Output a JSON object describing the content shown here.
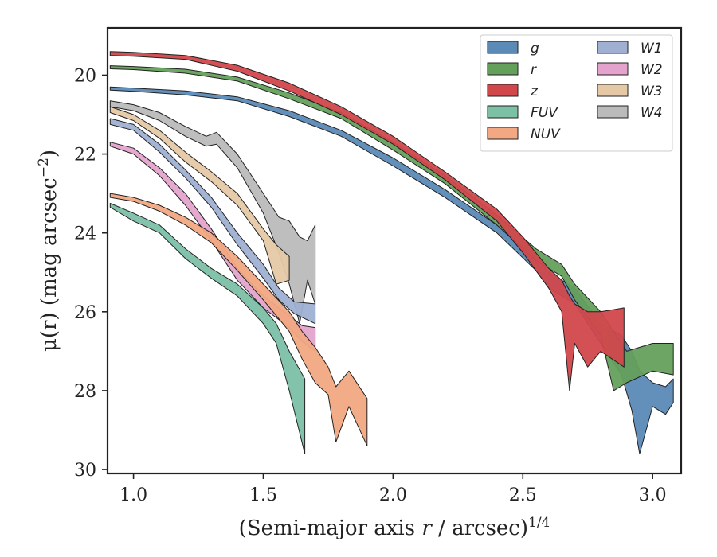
{
  "chart_data": {
    "type": "area",
    "xlabel_prefix": "(Semi-major axis ",
    "xlabel_var": "r",
    "xlabel_suffix": " / arcsec)",
    "xlabel_sup": "1/4",
    "ylabel_prefix": "μ(r) (mag arcsec",
    "ylabel_sup": "−2",
    "ylabel_suffix": ")",
    "xlim": [
      0.9,
      3.11
    ],
    "ylim": [
      30.1,
      18.8
    ],
    "y_inverted": true,
    "xticks": [
      1.0,
      1.5,
      2.0,
      2.5,
      3.0
    ],
    "xtick_labels": [
      "1.0",
      "1.5",
      "2.0",
      "2.5",
      "3.0"
    ],
    "yticks": [
      20,
      22,
      24,
      26,
      28,
      30
    ],
    "ytick_labels": [
      "20",
      "22",
      "24",
      "26",
      "28",
      "30"
    ],
    "grid": false,
    "legend_position": "top-right",
    "legend_columns": 2,
    "series": [
      {
        "name": "W4",
        "color": "#bbbbbb",
        "band": [
          [
            0.91,
            20.65,
            20.8
          ],
          [
            1.0,
            20.75,
            20.9
          ],
          [
            1.1,
            20.95,
            21.15
          ],
          [
            1.2,
            21.3,
            21.55
          ],
          [
            1.28,
            21.55,
            21.8
          ],
          [
            1.32,
            21.45,
            21.75
          ],
          [
            1.4,
            22.0,
            22.35
          ],
          [
            1.5,
            23.0,
            23.5
          ],
          [
            1.56,
            23.6,
            24.5
          ],
          [
            1.6,
            23.7,
            25.3
          ],
          [
            1.64,
            24.1,
            26.3
          ],
          [
            1.67,
            24.2,
            25.2
          ],
          [
            1.7,
            23.8,
            25.8
          ]
        ]
      },
      {
        "name": "W3",
        "color": "#e5c9a6",
        "band": [
          [
            0.91,
            20.8,
            20.95
          ],
          [
            1.0,
            21.0,
            21.15
          ],
          [
            1.1,
            21.4,
            21.6
          ],
          [
            1.2,
            21.95,
            22.2
          ],
          [
            1.3,
            22.45,
            22.7
          ],
          [
            1.4,
            23.0,
            23.3
          ],
          [
            1.5,
            23.9,
            24.2
          ],
          [
            1.55,
            24.3,
            25.3
          ],
          [
            1.6,
            24.6,
            25.2
          ]
        ]
      },
      {
        "name": "W1",
        "color": "#9fb0d2",
        "band": [
          [
            0.91,
            21.1,
            21.25
          ],
          [
            1.0,
            21.25,
            21.4
          ],
          [
            1.1,
            21.75,
            21.95
          ],
          [
            1.2,
            22.4,
            22.6
          ],
          [
            1.3,
            23.1,
            23.35
          ],
          [
            1.4,
            24.0,
            24.3
          ],
          [
            1.5,
            24.8,
            25.15
          ],
          [
            1.56,
            25.4,
            25.7
          ],
          [
            1.62,
            25.75,
            26.05
          ],
          [
            1.7,
            25.8,
            26.3
          ]
        ]
      },
      {
        "name": "W2",
        "color": "#e4a3cc",
        "band": [
          [
            0.91,
            21.7,
            21.8
          ],
          [
            1.0,
            21.85,
            22.0
          ],
          [
            1.1,
            22.35,
            22.55
          ],
          [
            1.2,
            23.0,
            23.3
          ],
          [
            1.3,
            23.9,
            24.2
          ],
          [
            1.4,
            24.9,
            25.2
          ],
          [
            1.5,
            25.6,
            25.9
          ],
          [
            1.6,
            26.1,
            26.4
          ],
          [
            1.65,
            26.35,
            26.75
          ],
          [
            1.7,
            26.4,
            27.0
          ]
        ]
      },
      {
        "name": "NUV",
        "color": "#f2a882",
        "band": [
          [
            0.91,
            23.0,
            23.1
          ],
          [
            1.0,
            23.1,
            23.2
          ],
          [
            1.1,
            23.3,
            23.45
          ],
          [
            1.2,
            23.6,
            23.8
          ],
          [
            1.3,
            24.0,
            24.25
          ],
          [
            1.4,
            24.6,
            24.95
          ],
          [
            1.5,
            25.3,
            25.7
          ],
          [
            1.6,
            26.0,
            26.5
          ],
          [
            1.65,
            26.5,
            27.2
          ],
          [
            1.7,
            26.9,
            27.8
          ],
          [
            1.75,
            27.4,
            28.1
          ],
          [
            1.78,
            27.9,
            29.3
          ],
          [
            1.83,
            27.5,
            28.4
          ],
          [
            1.9,
            28.2,
            29.4
          ]
        ]
      },
      {
        "name": "FUV",
        "color": "#7cc0a6",
        "band": [
          [
            0.91,
            23.25,
            23.35
          ],
          [
            1.0,
            23.5,
            23.7
          ],
          [
            1.1,
            23.8,
            24.0
          ],
          [
            1.2,
            24.4,
            24.65
          ],
          [
            1.3,
            24.9,
            25.15
          ],
          [
            1.4,
            25.3,
            25.6
          ],
          [
            1.5,
            25.9,
            26.3
          ],
          [
            1.55,
            26.3,
            26.8
          ],
          [
            1.6,
            27.0,
            28.0
          ],
          [
            1.66,
            27.7,
            29.6
          ]
        ]
      },
      {
        "name": "g",
        "color": "#5b8ab6",
        "band": [
          [
            0.91,
            20.3,
            20.38
          ],
          [
            1.0,
            20.33,
            20.41
          ],
          [
            1.2,
            20.4,
            20.5
          ],
          [
            1.4,
            20.55,
            20.65
          ],
          [
            1.6,
            20.9,
            21.05
          ],
          [
            1.8,
            21.4,
            21.55
          ],
          [
            2.0,
            22.1,
            22.3
          ],
          [
            2.2,
            22.9,
            23.1
          ],
          [
            2.4,
            23.8,
            24.0
          ],
          [
            2.55,
            24.6,
            24.95
          ],
          [
            2.6,
            25.0,
            25.4
          ],
          [
            2.7,
            25.4,
            25.8
          ],
          [
            2.8,
            26.3,
            26.8
          ],
          [
            2.88,
            26.6,
            27.6
          ],
          [
            2.92,
            27.0,
            28.5
          ],
          [
            2.95,
            27.5,
            29.6
          ],
          [
            3.0,
            27.8,
            28.4
          ],
          [
            3.05,
            27.9,
            28.6
          ],
          [
            3.08,
            27.7,
            28.3
          ]
        ]
      },
      {
        "name": "r",
        "color": "#64a05c",
        "band": [
          [
            0.91,
            19.76,
            19.84
          ],
          [
            1.0,
            19.78,
            19.86
          ],
          [
            1.2,
            19.85,
            19.95
          ],
          [
            1.4,
            20.05,
            20.15
          ],
          [
            1.6,
            20.45,
            20.6
          ],
          [
            1.8,
            20.95,
            21.1
          ],
          [
            2.0,
            21.7,
            21.9
          ],
          [
            2.2,
            22.55,
            22.75
          ],
          [
            2.4,
            23.55,
            23.8
          ],
          [
            2.55,
            24.4,
            24.7
          ],
          [
            2.65,
            24.8,
            25.1
          ],
          [
            2.7,
            25.3,
            25.7
          ],
          [
            2.8,
            26.0,
            26.6
          ],
          [
            2.85,
            26.5,
            28.0
          ],
          [
            2.9,
            27.0,
            27.8
          ],
          [
            3.0,
            26.8,
            27.5
          ],
          [
            3.08,
            26.8,
            27.6
          ]
        ]
      },
      {
        "name": "z",
        "color": "#d1484c",
        "band": [
          [
            0.91,
            19.4,
            19.5
          ],
          [
            1.0,
            19.42,
            19.52
          ],
          [
            1.2,
            19.5,
            19.6
          ],
          [
            1.4,
            19.75,
            19.9
          ],
          [
            1.6,
            20.2,
            20.4
          ],
          [
            1.8,
            20.8,
            21.0
          ],
          [
            2.0,
            21.55,
            21.75
          ],
          [
            2.2,
            22.45,
            22.65
          ],
          [
            2.4,
            23.4,
            23.7
          ],
          [
            2.5,
            24.1,
            24.5
          ],
          [
            2.6,
            24.9,
            25.4
          ],
          [
            2.65,
            25.2,
            26.0
          ],
          [
            2.68,
            25.6,
            28.0
          ],
          [
            2.7,
            25.8,
            26.8
          ],
          [
            2.75,
            26.0,
            27.4
          ],
          [
            2.8,
            26.0,
            27.0
          ],
          [
            2.89,
            25.9,
            27.4
          ]
        ]
      }
    ],
    "legend_order": [
      "g",
      "r",
      "z",
      "FUV",
      "NUV",
      "W1",
      "W2",
      "W3",
      "W4"
    ]
  }
}
